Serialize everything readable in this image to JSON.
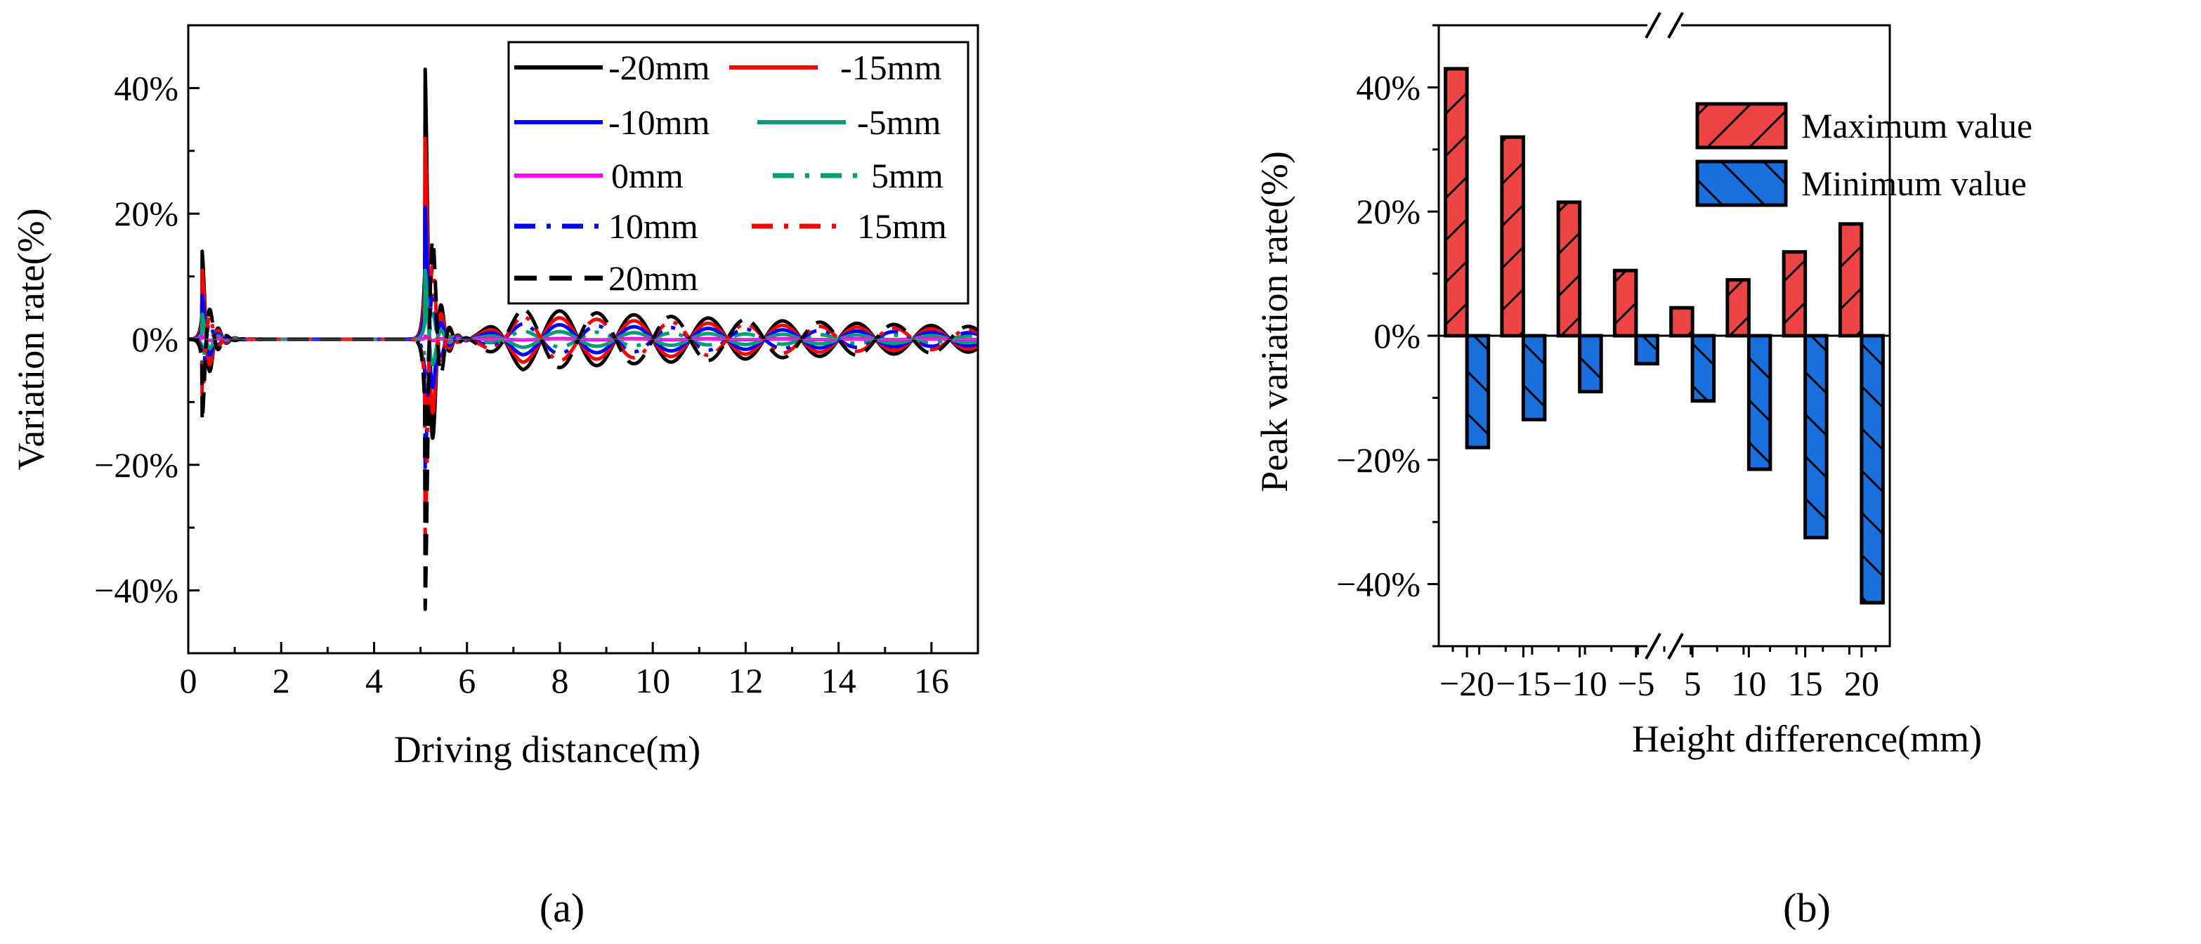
{
  "chart_data": [
    {
      "type": "line",
      "panel": "(a)",
      "xlabel": "Driving distance(m)",
      "ylabel": "Variation rate(%)",
      "xlim": [
        0,
        17
      ],
      "ylim": [
        -50,
        50
      ],
      "xticks": [
        0,
        2,
        4,
        6,
        8,
        10,
        12,
        14,
        16
      ],
      "yticks": [
        -40,
        -20,
        0,
        20,
        40
      ],
      "ytick_labels": [
        "−40%",
        "−20%",
        "0%",
        "20%",
        "40%"
      ],
      "legend_position": "top-right",
      "series": [
        {
          "name": "-20mm",
          "color": "#000000",
          "style": "solid",
          "events": [
            {
              "x": 0.3,
              "amp": 14
            },
            {
              "x": 5.1,
              "amp": 43
            }
          ],
          "osc": 4.5
        },
        {
          "name": "-15mm",
          "color": "#ff0000",
          "style": "solid",
          "events": [
            {
              "x": 0.3,
              "amp": 11
            },
            {
              "x": 5.1,
              "amp": 32
            }
          ],
          "osc": 3.4
        },
        {
          "name": "-10mm",
          "color": "#0000ff",
          "style": "solid",
          "events": [
            {
              "x": 0.3,
              "amp": 7
            },
            {
              "x": 5.1,
              "amp": 21
            }
          ],
          "osc": 2.3
        },
        {
          "name": "-5mm",
          "color": "#009e73",
          "style": "solid",
          "events": [
            {
              "x": 0.3,
              "amp": 4
            },
            {
              "x": 5.1,
              "amp": 11
            }
          ],
          "osc": 1.2
        },
        {
          "name": "0mm",
          "color": "#ff00ff",
          "style": "solid",
          "events": [
            {
              "x": 0.3,
              "amp": 0.5
            },
            {
              "x": 5.1,
              "amp": 0.5
            }
          ],
          "osc": 0.1
        },
        {
          "name": "5mm",
          "color": "#009e73",
          "style": "dashdot",
          "events": [
            {
              "x": 0.3,
              "amp": -4
            },
            {
              "x": 5.1,
              "amp": -11
            }
          ],
          "osc": -1.2
        },
        {
          "name": "10mm",
          "color": "#0000ff",
          "style": "dashdot",
          "events": [
            {
              "x": 0.3,
              "amp": -7
            },
            {
              "x": 5.1,
              "amp": -21
            }
          ],
          "osc": -2.3
        },
        {
          "name": "15mm",
          "color": "#ff0000",
          "style": "dashdot",
          "events": [
            {
              "x": 0.3,
              "amp": -10
            },
            {
              "x": 5.1,
              "amp": -32
            }
          ],
          "osc": -3.4
        },
        {
          "name": "20mm",
          "color": "#000000",
          "style": "dashed",
          "events": [
            {
              "x": 0.3,
              "amp": -13
            },
            {
              "x": 5.1,
              "amp": -43
            }
          ],
          "osc": -4.5
        }
      ],
      "caption": "(a)"
    },
    {
      "type": "bar",
      "panel": "(b)",
      "xlabel": "Height difference(mm)",
      "ylabel": "Peak variation rate(%)",
      "categories": [
        "−20",
        "−15",
        "−10",
        "−5",
        "5",
        "10",
        "15",
        "20"
      ],
      "ylim": [
        -50,
        50
      ],
      "yticks": [
        -40,
        -20,
        0,
        20,
        40
      ],
      "ytick_labels": [
        "−40%",
        "−20%",
        "0%",
        "20%",
        "40%"
      ],
      "axis_break_mark": "//",
      "legend_position": "top-right",
      "series": [
        {
          "name": "Maximum value",
          "color": "#ef4444",
          "hatch": "/",
          "values": [
            43,
            32,
            21.5,
            10.5,
            4.5,
            9,
            13.5,
            18
          ]
        },
        {
          "name": "Minimum value",
          "color": "#1a6fdf",
          "hatch": "\\",
          "values": [
            -18,
            -13.5,
            -9,
            -4.5,
            -10.5,
            -21.5,
            -32.5,
            -43
          ]
        }
      ],
      "caption": "(b)"
    }
  ]
}
